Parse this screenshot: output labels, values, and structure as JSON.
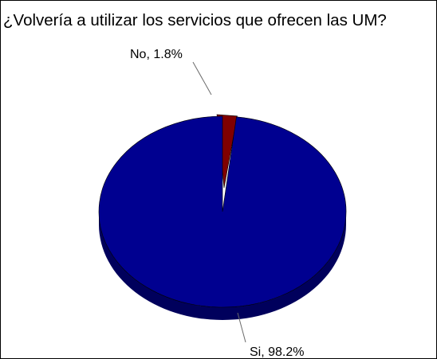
{
  "chart_data": {
    "type": "pie",
    "title": "¿Volvería a utilizar los servicios que ofrecen las UM?",
    "slices": [
      {
        "label": "No",
        "value": 1.8,
        "label_text": "No, 1.8%",
        "color": "#800000",
        "side_color": "#4a0000"
      },
      {
        "label": "Si",
        "value": 98.2,
        "label_text": "Si, 98.2%",
        "color": "#000090",
        "side_color": "#00005c"
      }
    ],
    "legend": "none",
    "style": "3d"
  }
}
